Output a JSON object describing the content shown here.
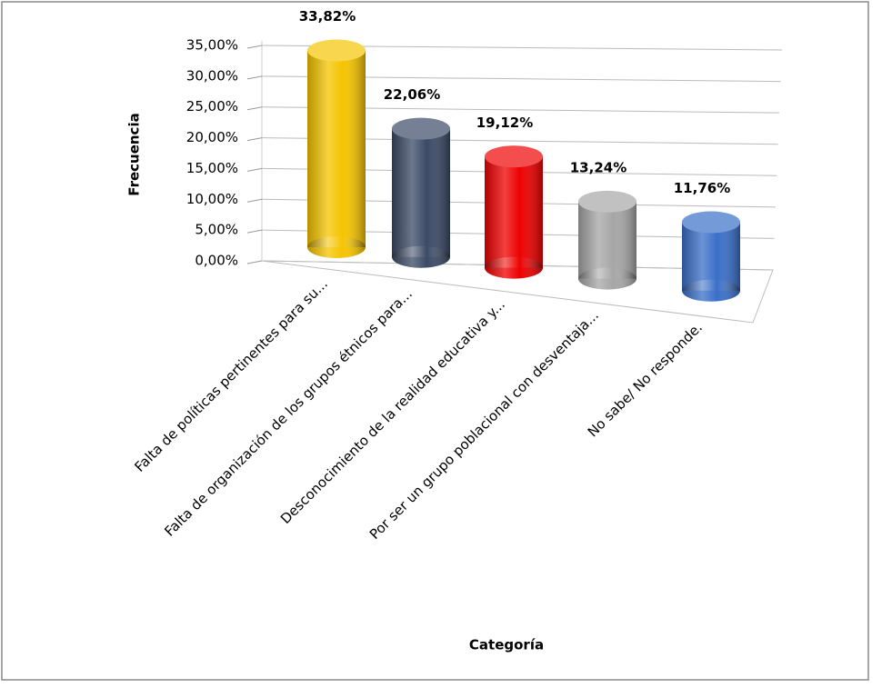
{
  "chart_data": {
    "type": "bar",
    "categories": [
      "Falta de políticas pertinentes  para su...",
      "Falta de organización de los grupos étnicos para...",
      "Desconocimiento de la realidad educativa y...",
      "Por ser un grupo poblacional con desventaja...",
      "No sabe/ No responde."
    ],
    "values": [
      33.82,
      22.06,
      19.12,
      13.24,
      11.76
    ],
    "value_labels": [
      "33,82%",
      "22,06%",
      "19,12%",
      "13,24%",
      "11,76%"
    ],
    "colors": [
      "#f5c400",
      "#3b4a66",
      "#ee0000",
      "#a6a6a6",
      "#3a6fc8"
    ],
    "ylim": [
      0,
      35
    ],
    "yticks": [
      {
        "value": 0,
        "label": "0,00%"
      },
      {
        "value": 5,
        "label": "5,00%"
      },
      {
        "value": 10,
        "label": "10,00%"
      },
      {
        "value": 15,
        "label": "15,00%"
      },
      {
        "value": 20,
        "label": "20,00%"
      },
      {
        "value": 25,
        "label": "25,00%"
      },
      {
        "value": 30,
        "label": "30,00%"
      },
      {
        "value": 35,
        "label": "35,00%"
      }
    ],
    "grid": true,
    "y_label": "Frecuencia",
    "x_label": "Categoría"
  }
}
